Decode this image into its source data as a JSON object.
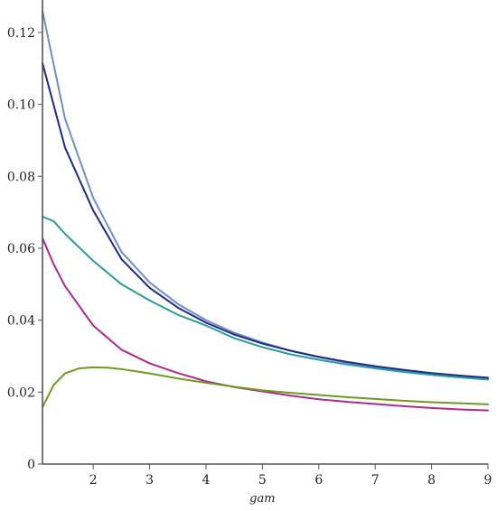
{
  "chart_data": {
    "type": "line",
    "title": "",
    "xlabel": "gam",
    "ylabel": "",
    "xlim": [
      1.1,
      9
    ],
    "ylim": [
      0,
      0.125
    ],
    "grid": false,
    "x_ticks": [
      2,
      3,
      4,
      5,
      6,
      7,
      8,
      9
    ],
    "x_tick_labels": [
      "2",
      "3",
      "4",
      "5",
      "6",
      "7",
      "8",
      "9"
    ],
    "y_ticks": [
      0,
      0.02,
      0.04,
      0.06,
      0.08,
      0.1,
      0.12
    ],
    "y_tick_labels": [
      "0",
      "0.02",
      "0.04",
      "0.06",
      "0.08",
      "0.10",
      "0.12"
    ],
    "series": [
      {
        "color": "#6f8fc4",
        "x": [
          1.1,
          1.5,
          2,
          2.5,
          3,
          3.5,
          4,
          4.5,
          5,
          5.5,
          6,
          6.5,
          7,
          7.5,
          8,
          8.5,
          9
        ],
        "y": [
          0.126,
          0.096,
          0.074,
          0.059,
          0.0505,
          0.0445,
          0.04,
          0.0365,
          0.0338,
          0.0315,
          0.0297,
          0.0282,
          0.027,
          0.0259,
          0.025,
          0.0243,
          0.0237
        ]
      },
      {
        "color": "#1c2a8a",
        "x": [
          1.1,
          1.5,
          2,
          2.5,
          3,
          3.5,
          4,
          4.5,
          5,
          5.5,
          6,
          6.5,
          7,
          7.5,
          8,
          8.5,
          9
        ],
        "y": [
          0.1115,
          0.088,
          0.0705,
          0.057,
          0.049,
          0.0435,
          0.0393,
          0.036,
          0.0335,
          0.0315,
          0.0298,
          0.0284,
          0.0272,
          0.0262,
          0.0253,
          0.0246,
          0.024
        ]
      },
      {
        "color": "#2a9d9b",
        "x": [
          1.1,
          1.3,
          1.5,
          2,
          2.5,
          3,
          3.5,
          4,
          4.5,
          5,
          5.5,
          6,
          6.5,
          7,
          7.5,
          8,
          8.5,
          9
        ],
        "y": [
          0.0688,
          0.0675,
          0.064,
          0.0565,
          0.05,
          0.0455,
          0.0415,
          0.0385,
          0.035,
          0.0325,
          0.0305,
          0.029,
          0.0277,
          0.0266,
          0.0256,
          0.0248,
          0.0241,
          0.0235
        ]
      },
      {
        "color": "#b0278f",
        "x": [
          1.1,
          1.3,
          1.5,
          2,
          2.5,
          3,
          3.5,
          4,
          4.5,
          5,
          5.5,
          6,
          6.5,
          7,
          7.5,
          8,
          8.5,
          9
        ],
        "y": [
          0.0628,
          0.0555,
          0.0495,
          0.0385,
          0.0318,
          0.028,
          0.0253,
          0.023,
          0.0214,
          0.0202,
          0.019,
          0.018,
          0.0173,
          0.0167,
          0.0161,
          0.0156,
          0.0152,
          0.0149
        ]
      },
      {
        "color": "#6e9a1f",
        "x": [
          1.1,
          1.3,
          1.5,
          1.75,
          2,
          2.25,
          2.5,
          3,
          3.5,
          4,
          4.5,
          5,
          5.5,
          6,
          6.5,
          7,
          7.5,
          8,
          8.5,
          9
        ],
        "y": [
          0.0158,
          0.022,
          0.0252,
          0.0266,
          0.0269,
          0.0268,
          0.0264,
          0.0252,
          0.0238,
          0.0226,
          0.0215,
          0.0205,
          0.0198,
          0.0192,
          0.0186,
          0.0181,
          0.0176,
          0.0172,
          0.0169,
          0.0166
        ]
      }
    ]
  }
}
